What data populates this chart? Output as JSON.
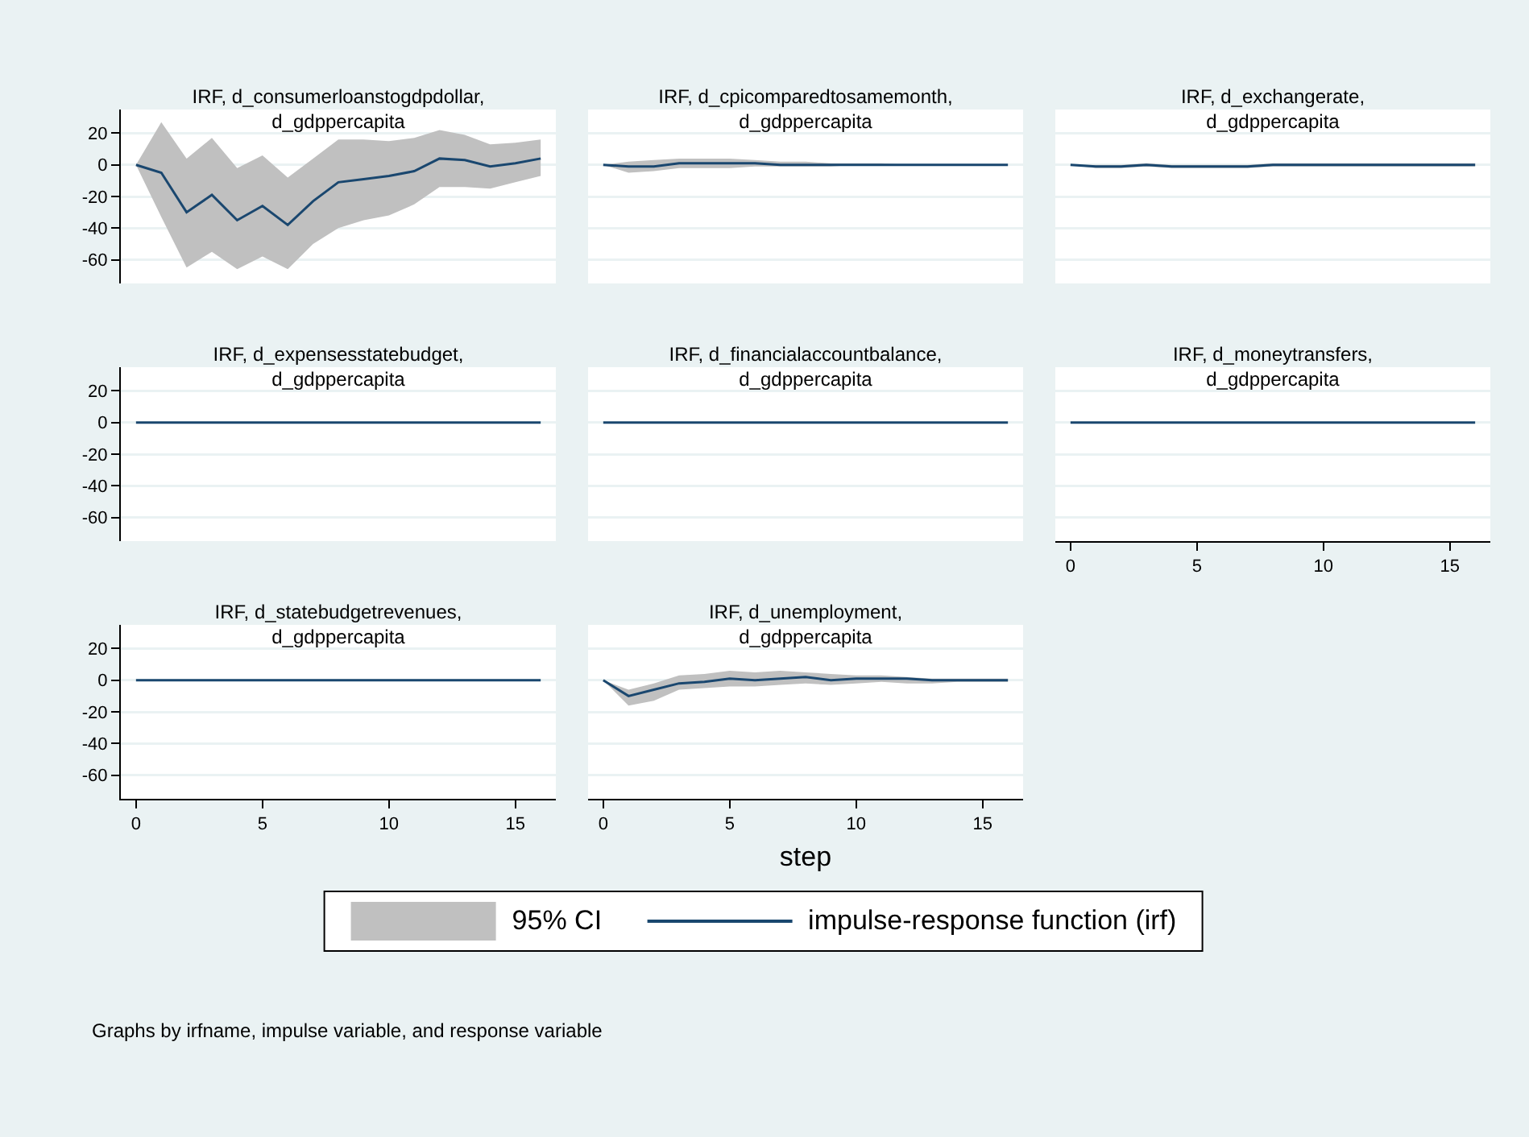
{
  "chart_data": [
    {
      "type": "line",
      "title": "IRF, d_consumerloanstogdpdollar, d_gdppercapita",
      "x": [
        0,
        1,
        2,
        3,
        4,
        5,
        6,
        7,
        8,
        9,
        10,
        11,
        12,
        13,
        14,
        15,
        16
      ],
      "xlim": [
        -0.6,
        16.6
      ],
      "xticks": [
        0,
        5,
        10,
        15
      ],
      "ylim": [
        -75,
        35
      ],
      "yticks": [
        -60,
        -40,
        -20,
        0,
        20
      ],
      "grid": "y",
      "tick_labels": "y",
      "legend": false,
      "series": [
        {
          "type": "line",
          "color": "#1a476f",
          "values": [
            0,
            -5,
            -30,
            -19,
            -35,
            -26,
            -38,
            -23,
            -11,
            -9,
            -7,
            -4,
            4,
            3,
            -1,
            1,
            4
          ],
          "upper": [
            0,
            27,
            4,
            17,
            -2,
            6,
            -8,
            4,
            16,
            16,
            15,
            17,
            22,
            19,
            13,
            14,
            16
          ],
          "lower": [
            0,
            -33,
            -65,
            -55,
            -66,
            -58,
            -66,
            -50,
            -40,
            -35,
            -32,
            -25,
            -14,
            -14,
            -15,
            -11,
            -7
          ]
        }
      ]
    },
    {
      "type": "line",
      "title": "IRF, d_cpicomparedtosamemonth, d_gdppercapita",
      "x": [
        0,
        1,
        2,
        3,
        4,
        5,
        6,
        7,
        8,
        9,
        10,
        11,
        12,
        13,
        14,
        15,
        16
      ],
      "xlim": [
        -0.6,
        16.6
      ],
      "xticks": [
        0,
        5,
        10,
        15
      ],
      "ylim": [
        -75,
        35
      ],
      "yticks": [
        -60,
        -40,
        -20,
        0,
        20
      ],
      "grid": "y",
      "tick_labels": false,
      "legend": false,
      "series": [
        {
          "type": "line",
          "color": "#1a476f",
          "values": [
            0,
            -1,
            -1,
            1,
            1,
            1,
            1,
            0,
            0,
            0,
            0,
            0,
            0,
            0,
            0,
            0,
            0
          ],
          "upper": [
            0,
            2,
            3,
            4,
            4,
            4,
            3,
            2,
            2,
            1,
            1,
            1,
            0,
            0,
            0,
            0,
            0
          ],
          "lower": [
            0,
            -5,
            -4,
            -2,
            -2,
            -2,
            -1,
            -1,
            -1,
            -1,
            0,
            0,
            0,
            0,
            0,
            0,
            0
          ]
        }
      ]
    },
    {
      "type": "line",
      "title": "IRF, d_exchangerate, d_gdppercapita",
      "x": [
        0,
        1,
        2,
        3,
        4,
        5,
        6,
        7,
        8,
        9,
        10,
        11,
        12,
        13,
        14,
        15,
        16
      ],
      "xlim": [
        -0.6,
        16.6
      ],
      "xticks": [
        0,
        5,
        10,
        15
      ],
      "ylim": [
        -75,
        35
      ],
      "yticks": [
        -60,
        -40,
        -20,
        0,
        20
      ],
      "grid": "y",
      "tick_labels": false,
      "legend": false,
      "series": [
        {
          "type": "line",
          "color": "#1a476f",
          "values": [
            0,
            -1,
            -1,
            0,
            -1,
            -1,
            -1,
            -1,
            0,
            0,
            0,
            0,
            0,
            0,
            0,
            0,
            0
          ],
          "upper": [
            0,
            0,
            0,
            1,
            0,
            0,
            0,
            0,
            1,
            1,
            1,
            1,
            1,
            1,
            1,
            1,
            1
          ],
          "lower": [
            0,
            -2,
            -2,
            -1,
            -2,
            -2,
            -2,
            -2,
            -1,
            -1,
            -1,
            -1,
            -1,
            -1,
            -1,
            -1,
            -1
          ]
        }
      ]
    },
    {
      "type": "line",
      "title": "IRF, d_expensesstatebudget, d_gdppercapita",
      "x": [
        0,
        1,
        2,
        3,
        4,
        5,
        6,
        7,
        8,
        9,
        10,
        11,
        12,
        13,
        14,
        15,
        16
      ],
      "xlim": [
        -0.6,
        16.6
      ],
      "xticks": [
        0,
        5,
        10,
        15
      ],
      "ylim": [
        -75,
        35
      ],
      "yticks": [
        -60,
        -40,
        -20,
        0,
        20
      ],
      "grid": "y",
      "tick_labels": "y",
      "legend": false,
      "series": [
        {
          "type": "line",
          "color": "#1a476f",
          "values": [
            0,
            0,
            0,
            0,
            0,
            0,
            0,
            0,
            0,
            0,
            0,
            0,
            0,
            0,
            0,
            0,
            0
          ]
        }
      ]
    },
    {
      "type": "line",
      "title": "IRF, d_financialaccountbalance, d_gdppercapita",
      "x": [
        0,
        1,
        2,
        3,
        4,
        5,
        6,
        7,
        8,
        9,
        10,
        11,
        12,
        13,
        14,
        15,
        16
      ],
      "xlim": [
        -0.6,
        16.6
      ],
      "xticks": [
        0,
        5,
        10,
        15
      ],
      "ylim": [
        -75,
        35
      ],
      "yticks": [
        -60,
        -40,
        -20,
        0,
        20
      ],
      "grid": "y",
      "tick_labels": false,
      "legend": false,
      "series": [
        {
          "type": "line",
          "color": "#1a476f",
          "values": [
            0,
            0,
            0,
            0,
            0,
            0,
            0,
            0,
            0,
            0,
            0,
            0,
            0,
            0,
            0,
            0,
            0
          ]
        }
      ]
    },
    {
      "type": "line",
      "title": "IRF, d_moneytransfers, d_gdppercapita",
      "x": [
        0,
        1,
        2,
        3,
        4,
        5,
        6,
        7,
        8,
        9,
        10,
        11,
        12,
        13,
        14,
        15,
        16
      ],
      "xlim": [
        -0.6,
        16.6
      ],
      "xticks": [
        0,
        5,
        10,
        15
      ],
      "ylim": [
        -75,
        35
      ],
      "yticks": [
        -60,
        -40,
        -20,
        0,
        20
      ],
      "grid": "y",
      "tick_labels": "x",
      "legend": false,
      "series": [
        {
          "type": "line",
          "color": "#1a476f",
          "values": [
            0,
            0,
            0,
            0,
            0,
            0,
            0,
            0,
            0,
            0,
            0,
            0,
            0,
            0,
            0,
            0,
            0
          ]
        }
      ]
    },
    {
      "type": "line",
      "title": "IRF, d_statebudgetrevenues, d_gdppercapita",
      "x": [
        0,
        1,
        2,
        3,
        4,
        5,
        6,
        7,
        8,
        9,
        10,
        11,
        12,
        13,
        14,
        15,
        16
      ],
      "xlim": [
        -0.6,
        16.6
      ],
      "xticks": [
        0,
        5,
        10,
        15
      ],
      "ylim": [
        -75,
        35
      ],
      "yticks": [
        -60,
        -40,
        -20,
        0,
        20
      ],
      "grid": "y",
      "legend": false,
      "series": [
        {
          "type": "line",
          "color": "#1a476f",
          "values": [
            0,
            0,
            0,
            0,
            0,
            0,
            0,
            0,
            0,
            0,
            0,
            0,
            0,
            0,
            0,
            0,
            0
          ]
        }
      ]
    },
    {
      "type": "line",
      "title": "IRF, d_unemployment, d_gdppercapita",
      "xlabel": "step",
      "x": [
        0,
        1,
        2,
        3,
        4,
        5,
        6,
        7,
        8,
        9,
        10,
        11,
        12,
        13,
        14,
        15,
        16
      ],
      "xlim": [
        -0.6,
        16.6
      ],
      "xticks": [
        0,
        5,
        10,
        15
      ],
      "ylim": [
        -75,
        35
      ],
      "yticks": [
        -60,
        -40,
        -20,
        0,
        20
      ],
      "grid": "y",
      "tick_labels": "x",
      "legend": "bottom",
      "annotations": [
        "95% CI",
        "Graphs by irfname, impulse variable, and response variable"
      ],
      "series": [
        {
          "type": "line",
          "name": "impulse-response function (irf)",
          "color": "#1a476f",
          "values": [
            0,
            -10,
            -6,
            -2,
            -1,
            1,
            0,
            1,
            2,
            0,
            1,
            1,
            1,
            0,
            0,
            0,
            0
          ],
          "upper": [
            0,
            -6,
            -2,
            3,
            4,
            6,
            5,
            6,
            5,
            4,
            3,
            3,
            2,
            1,
            1,
            1,
            1
          ],
          "lower": [
            0,
            -16,
            -13,
            -6,
            -5,
            -4,
            -4,
            -3,
            -2,
            -3,
            -2,
            -1,
            -2,
            -2,
            -1,
            -1,
            -1
          ]
        }
      ]
    }
  ]
}
